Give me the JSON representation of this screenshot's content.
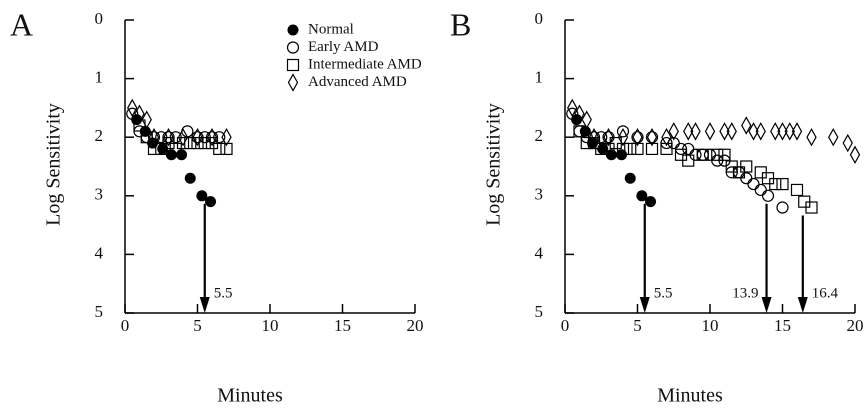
{
  "chart_data": [
    {
      "type": "scatter",
      "title": "A",
      "xlabel": "Minutes",
      "ylabel": "Log Sensitivity",
      "xlim": [
        0,
        20
      ],
      "ylim": [
        0,
        5
      ],
      "y_reversed": true,
      "xticks": [
        0,
        5,
        10,
        15,
        20
      ],
      "yticks": [
        0,
        1,
        2,
        3,
        4,
        5
      ],
      "legend": "top",
      "series": [
        {
          "name": "Normal",
          "color": "#000000",
          "marker": "filled-circle",
          "x": [
            0.8,
            1.4,
            1.9,
            2.6,
            3.2,
            3.9,
            4.5,
            5.3,
            5.9
          ],
          "values": [
            1.7,
            1.9,
            2.1,
            2.2,
            2.3,
            2.3,
            2.7,
            3.0,
            3.1
          ]
        },
        {
          "name": "Early AMD",
          "color": "#000000",
          "marker": "circle",
          "x": [
            0.5,
            1.0,
            1.5,
            2.0,
            2.5,
            3.0,
            3.5,
            4.3,
            5.0,
            5.5,
            6.0,
            6.5
          ],
          "values": [
            1.6,
            1.9,
            2.0,
            2.0,
            2.0,
            2.0,
            2.0,
            1.9,
            2.0,
            2.0,
            2.0,
            2.0
          ]
        },
        {
          "name": "Intermediate AMD",
          "color": "#000000",
          "marker": "square",
          "x": [
            1.0,
            1.5,
            2.0,
            2.5,
            3.0,
            3.5,
            4.0,
            4.5,
            5.0,
            5.5,
            6.0,
            6.5,
            7.0
          ],
          "values": [
            1.8,
            2.0,
            2.2,
            2.2,
            2.1,
            2.2,
            2.1,
            2.1,
            2.1,
            2.1,
            2.1,
            2.2,
            2.2
          ]
        },
        {
          "name": "Advanced AMD",
          "color": "#000000",
          "marker": "diamond",
          "x": [
            0.5,
            1.0,
            1.5,
            2.0,
            3.0,
            4.0,
            5.0,
            6.0,
            7.0
          ],
          "values": [
            1.5,
            1.6,
            1.7,
            2.0,
            2.0,
            2.0,
            2.0,
            2.0,
            2.0
          ]
        }
      ],
      "arrows": [
        {
          "x": 5.5,
          "from": 3.0,
          "label_side": "right"
        }
      ]
    },
    {
      "type": "scatter",
      "title": "B",
      "xlabel": "Minutes",
      "ylabel": "Log Sensitivity",
      "xlim": [
        0,
        20
      ],
      "ylim": [
        0,
        5
      ],
      "y_reversed": true,
      "xticks": [
        0,
        5,
        10,
        15,
        20
      ],
      "yticks": [
        0,
        1,
        2,
        3,
        4,
        5
      ],
      "series": [
        {
          "name": "Normal",
          "color": "#000000",
          "marker": "filled-circle",
          "x": [
            0.8,
            1.4,
            1.9,
            2.6,
            3.2,
            3.9,
            4.5,
            5.3,
            5.9
          ],
          "values": [
            1.7,
            1.9,
            2.1,
            2.2,
            2.3,
            2.3,
            2.7,
            3.0,
            3.1
          ]
        },
        {
          "name": "Early AMD",
          "color": "#000000",
          "marker": "circle",
          "x": [
            0.5,
            1.0,
            1.5,
            2.0,
            2.5,
            3.0,
            4.0,
            5.0,
            6.0,
            7.0,
            7.5,
            8.0,
            8.5,
            9.0,
            9.5,
            10.0,
            10.5,
            11.0,
            11.5,
            12.0,
            12.5,
            13.0,
            13.5,
            14.0,
            15.0
          ],
          "values": [
            1.6,
            1.9,
            2.0,
            2.0,
            2.0,
            2.0,
            1.9,
            2.0,
            2.0,
            2.1,
            2.1,
            2.2,
            2.2,
            2.3,
            2.3,
            2.3,
            2.4,
            2.4,
            2.6,
            2.6,
            2.7,
            2.8,
            2.9,
            3.0,
            3.2
          ]
        },
        {
          "name": "Intermediate AMD",
          "color": "#000000",
          "marker": "square",
          "x": [
            1.0,
            1.5,
            2.0,
            2.5,
            3.0,
            3.5,
            4.0,
            4.5,
            5.0,
            6.0,
            7.0,
            8.0,
            8.5,
            9.5,
            10.5,
            11.0,
            11.5,
            12.0,
            12.5,
            13.5,
            14.0,
            14.5,
            15.0,
            16.0,
            16.5,
            17.0
          ],
          "values": [
            1.9,
            2.1,
            2.1,
            2.2,
            2.2,
            2.1,
            2.2,
            2.2,
            2.2,
            2.2,
            2.2,
            2.3,
            2.4,
            2.3,
            2.3,
            2.3,
            2.5,
            2.6,
            2.5,
            2.6,
            2.7,
            2.8,
            2.8,
            2.9,
            3.1,
            3.2
          ]
        },
        {
          "name": "Advanced AMD",
          "color": "#000000",
          "marker": "diamond",
          "x": [
            0.5,
            1.0,
            1.5,
            2.0,
            3.0,
            4.0,
            5.0,
            6.0,
            7.0,
            7.5,
            8.5,
            9.0,
            10.0,
            11.0,
            11.5,
            12.5,
            13.0,
            13.5,
            14.5,
            15.0,
            15.5,
            16.0,
            17.0,
            18.5,
            19.5,
            20.0
          ],
          "values": [
            1.5,
            1.6,
            1.7,
            2.0,
            2.0,
            2.0,
            2.0,
            2.0,
            2.0,
            1.9,
            1.9,
            1.9,
            1.9,
            1.9,
            1.9,
            1.8,
            1.9,
            1.9,
            1.9,
            1.9,
            1.9,
            1.9,
            2.0,
            2.0,
            2.1,
            2.3
          ]
        }
      ],
      "arrows": [
        {
          "x": 5.5,
          "from": 3.0,
          "label_side": "right"
        },
        {
          "x": 13.9,
          "from": 3.0,
          "label_side": "left"
        },
        {
          "x": 16.4,
          "from": 3.2,
          "label_side": "right"
        }
      ]
    }
  ]
}
